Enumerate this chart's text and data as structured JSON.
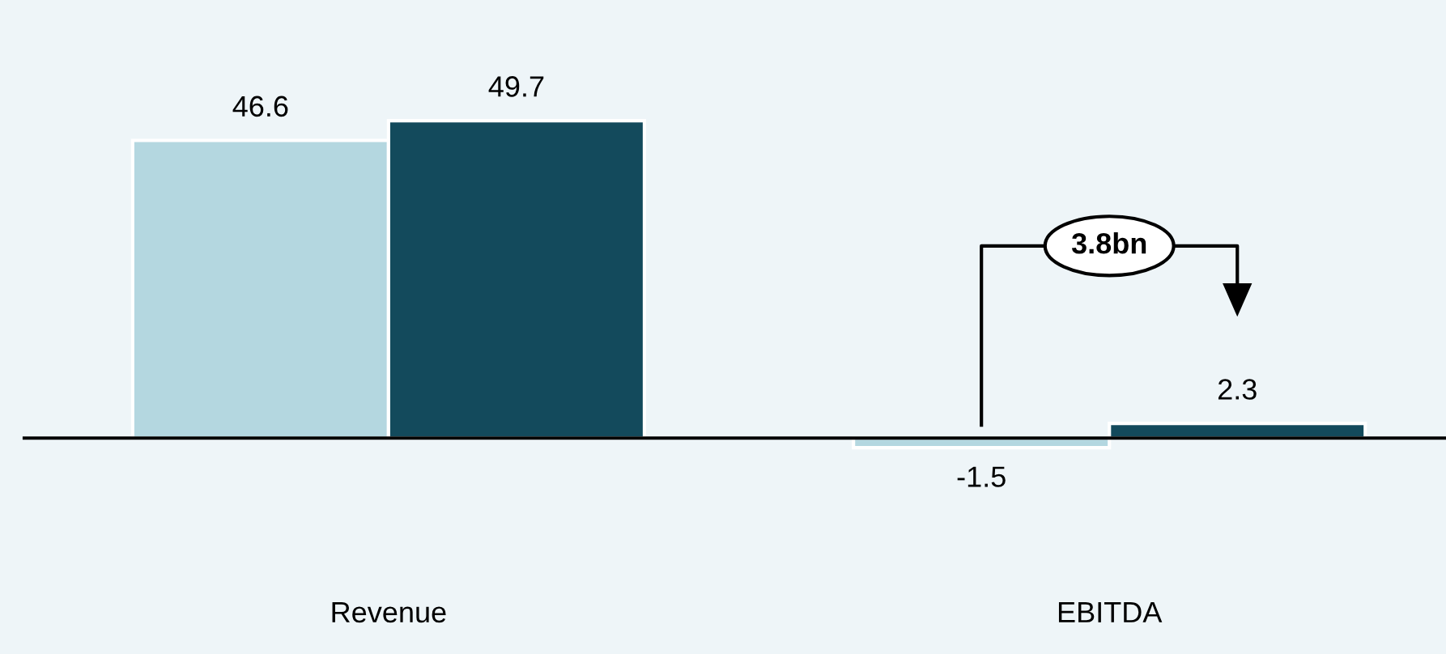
{
  "chart_data": {
    "type": "bar",
    "categories": [
      "Revenue",
      "EBITDA"
    ],
    "series": [
      {
        "color": "#b4d7e0",
        "values": [
          46.6,
          -1.5
        ]
      },
      {
        "color": "#134a5c",
        "values": [
          49.7,
          2.3
        ]
      }
    ],
    "data_labels": true,
    "legend": false,
    "annotations": [
      "3.8bn"
    ]
  }
}
